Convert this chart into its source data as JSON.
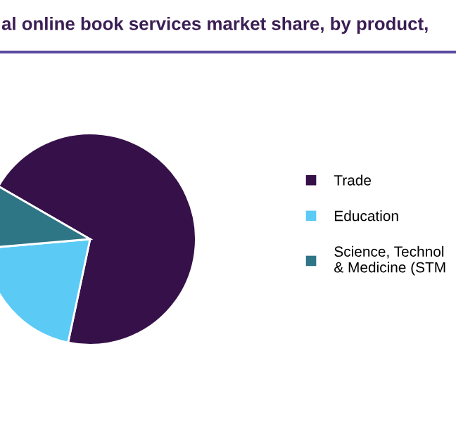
{
  "chart_data": {
    "type": "pie",
    "title": "al online book services market share, by product,",
    "categories": [
      "Trade",
      "Education",
      "Science, Technol\n& Medicine (STM"
    ],
    "values": [
      70,
      20.3,
      9.7
    ],
    "colors": [
      "#361049",
      "#5bcbf5",
      "#2e7585"
    ],
    "legend": "right"
  }
}
